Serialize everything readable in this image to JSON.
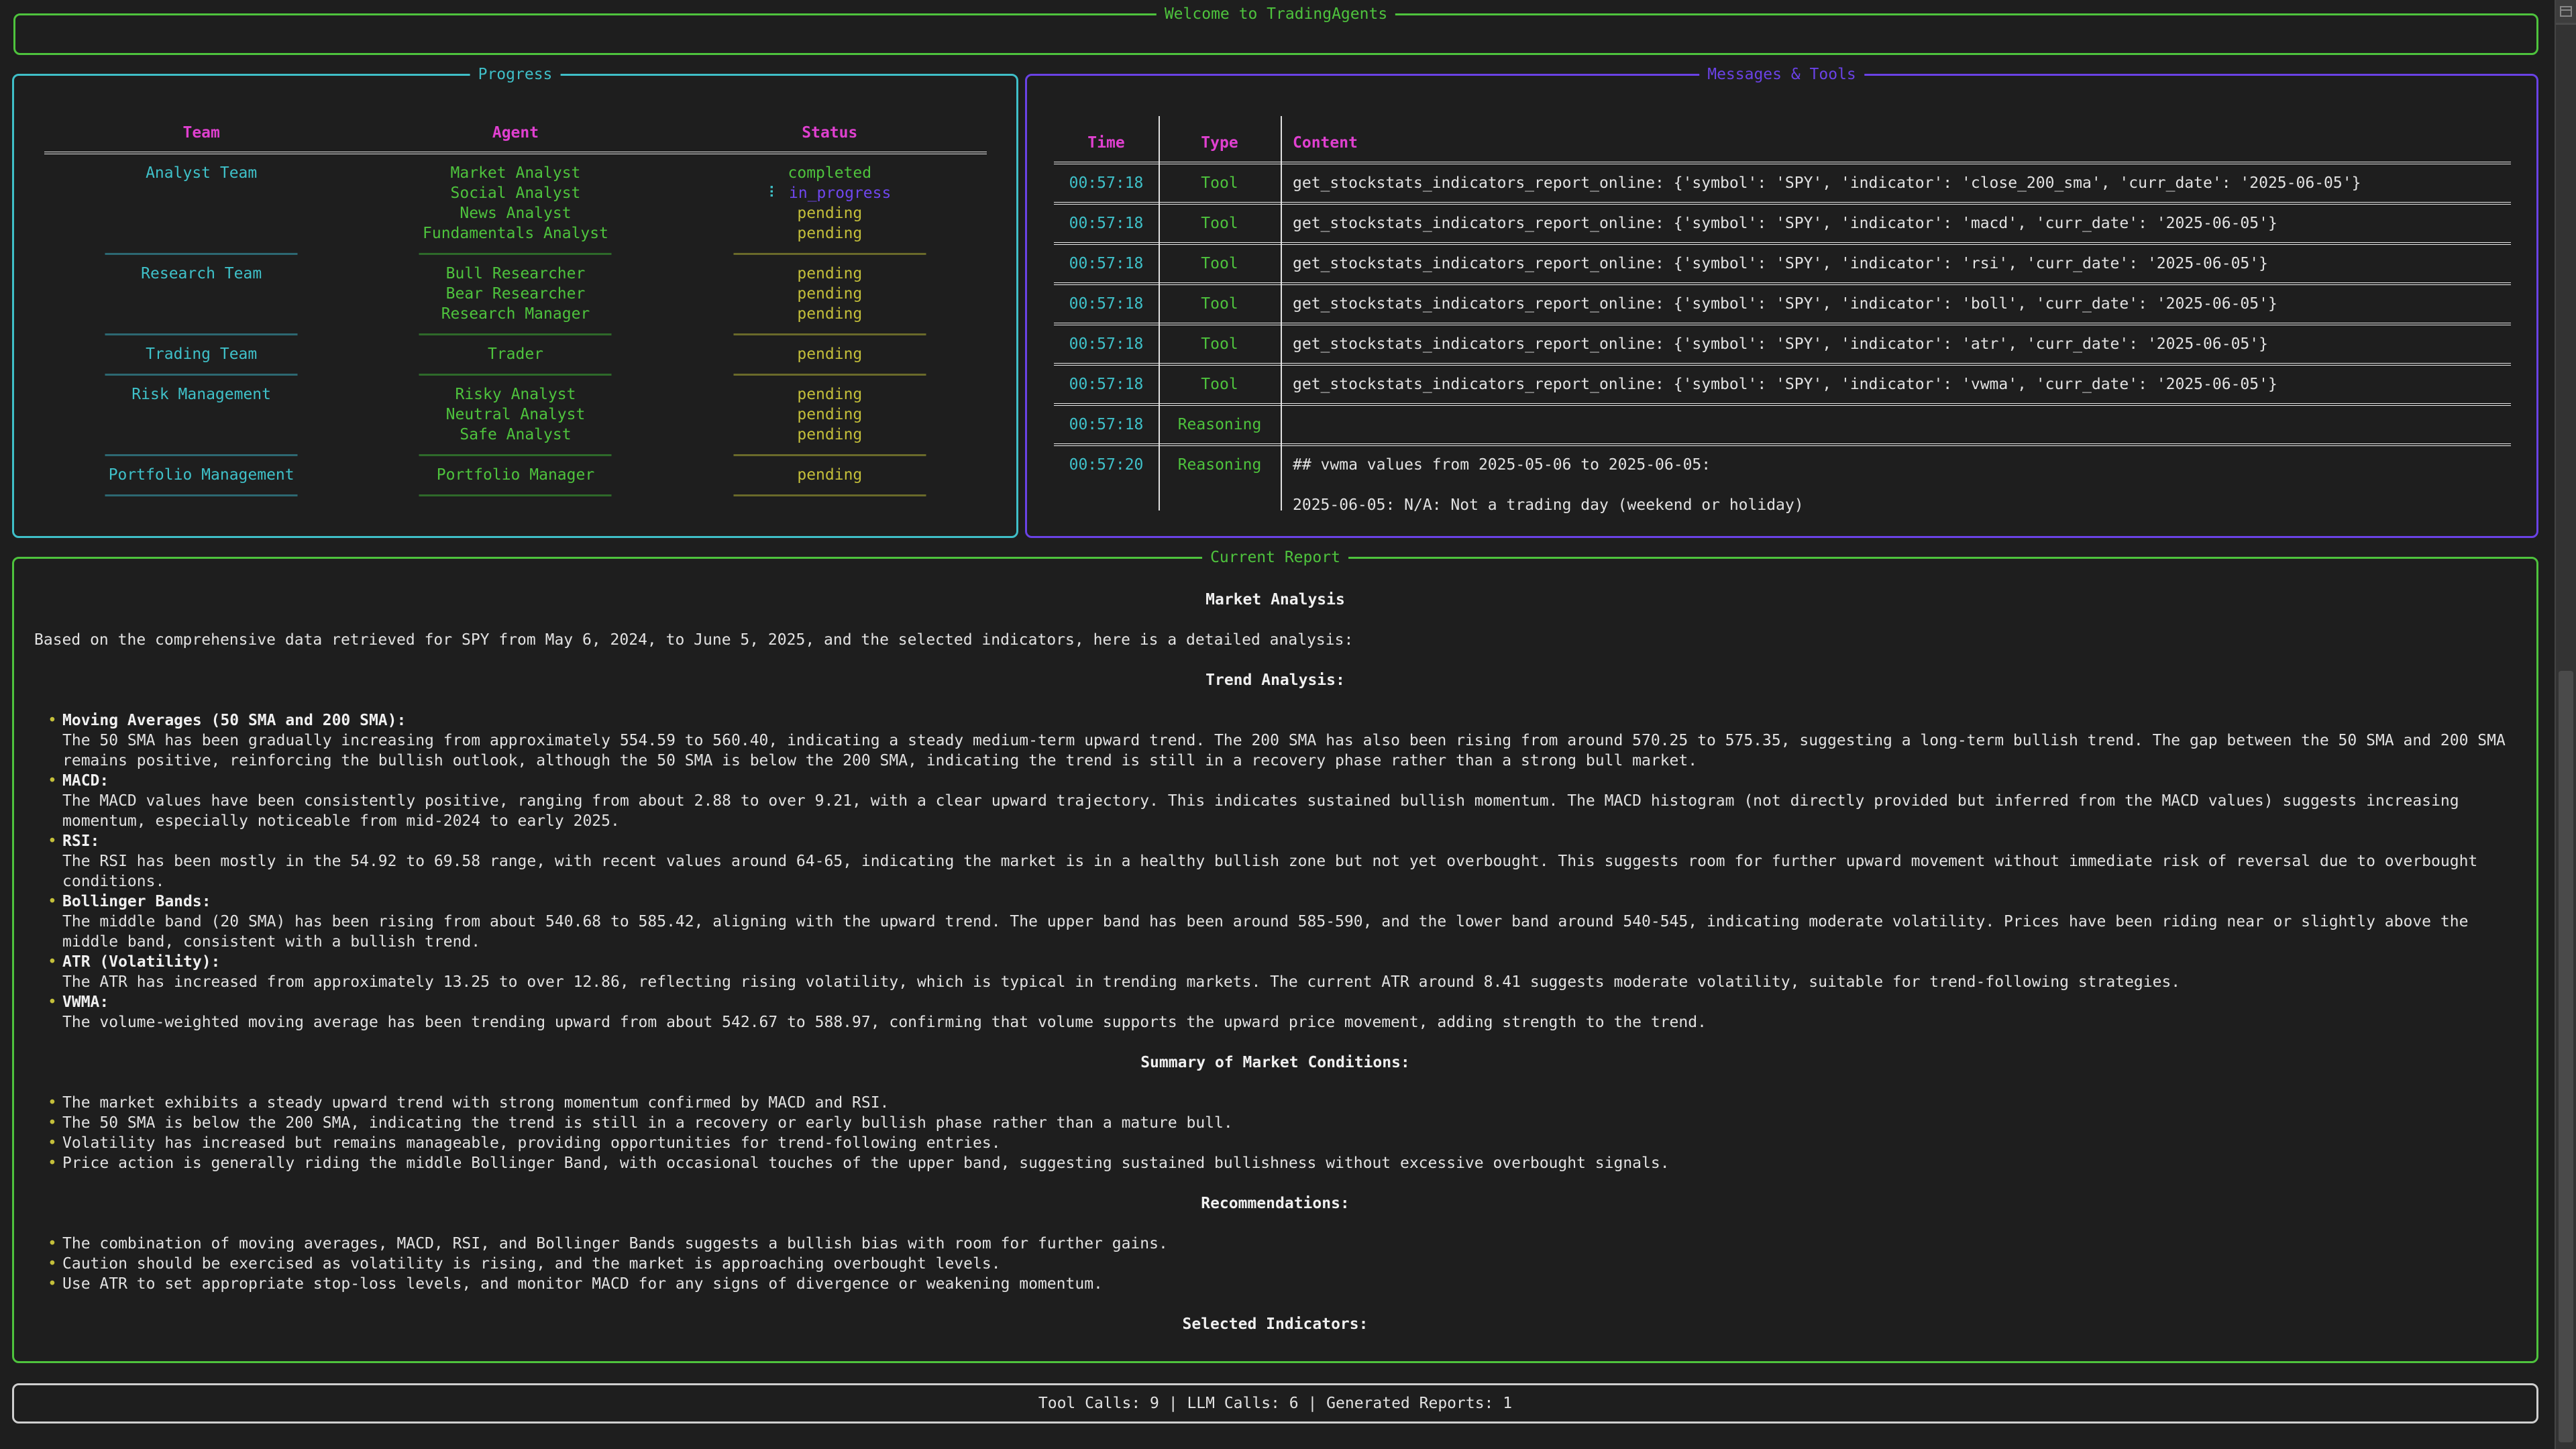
{
  "welcome": {
    "title": "Welcome to TradingAgents"
  },
  "progress": {
    "title": "Progress",
    "headers": [
      "Team",
      "Agent",
      "Status"
    ],
    "groups": [
      {
        "team": "Analyst Team",
        "agents": [
          {
            "name": "Market Analyst",
            "status": "completed"
          },
          {
            "name": "Social Analyst",
            "status": "in_progress",
            "spinner": "⠇"
          },
          {
            "name": "News Analyst",
            "status": "pending"
          },
          {
            "name": "Fundamentals Analyst",
            "status": "pending"
          }
        ]
      },
      {
        "team": "Research Team",
        "agents": [
          {
            "name": "Bull Researcher",
            "status": "pending"
          },
          {
            "name": "Bear Researcher",
            "status": "pending"
          },
          {
            "name": "Research Manager",
            "status": "pending"
          }
        ]
      },
      {
        "team": "Trading Team",
        "agents": [
          {
            "name": "Trader",
            "status": "pending"
          }
        ]
      },
      {
        "team": "Risk Management",
        "agents": [
          {
            "name": "Risky Analyst",
            "status": "pending"
          },
          {
            "name": "Neutral Analyst",
            "status": "pending"
          },
          {
            "name": "Safe Analyst",
            "status": "pending"
          }
        ]
      },
      {
        "team": "Portfolio Management",
        "agents": [
          {
            "name": "Portfolio Manager",
            "status": "pending"
          }
        ]
      }
    ],
    "status_colors": {
      "completed": "#4ec33d",
      "in_progress": "#6f47ee",
      "pending": "#c4bf3a"
    }
  },
  "messages": {
    "title": "Messages & Tools",
    "headers": [
      "Time",
      "Type",
      "Content"
    ],
    "rows": [
      {
        "time": "00:57:18",
        "type": "Tool",
        "content": "get_stockstats_indicators_report_online: {'symbol': 'SPY', 'indicator': 'close_200_sma', 'curr_date': '2025-06-05'}"
      },
      {
        "time": "00:57:18",
        "type": "Tool",
        "content": "get_stockstats_indicators_report_online: {'symbol': 'SPY', 'indicator': 'macd', 'curr_date': '2025-06-05'}"
      },
      {
        "time": "00:57:18",
        "type": "Tool",
        "content": "get_stockstats_indicators_report_online: {'symbol': 'SPY', 'indicator': 'rsi', 'curr_date': '2025-06-05'}"
      },
      {
        "time": "00:57:18",
        "type": "Tool",
        "content": "get_stockstats_indicators_report_online: {'symbol': 'SPY', 'indicator': 'boll', 'curr_date': '2025-06-05'}"
      },
      {
        "time": "00:57:18",
        "type": "Tool",
        "content": "get_stockstats_indicators_report_online: {'symbol': 'SPY', 'indicator': 'atr', 'curr_date': '2025-06-05'}"
      },
      {
        "time": "00:57:18",
        "type": "Tool",
        "content": "get_stockstats_indicators_report_online: {'symbol': 'SPY', 'indicator': 'vwma', 'curr_date': '2025-06-05'}"
      },
      {
        "time": "00:57:18",
        "type": "Reasoning",
        "content": ""
      },
      {
        "time": "00:57:20",
        "type": "Reasoning",
        "content": "## vwma values from 2025-05-06 to 2025-06-05:\n\n2025-06-05: N/A: Not a trading day (weekend or holiday)"
      }
    ]
  },
  "report": {
    "title": "Current Report",
    "blocks": [
      {
        "type": "heading",
        "text": "Market Analysis"
      },
      {
        "type": "para",
        "text": "Based on the comprehensive data retrieved for SPY from May 6, 2024, to June 5, 2025, and the selected indicators, here is a detailed analysis:"
      },
      {
        "type": "heading",
        "text": "Trend Analysis:"
      },
      {
        "type": "bullets",
        "items": [
          {
            "label": "Moving Averages (50 SMA and 200 SMA):",
            "text": "The 50 SMA has been gradually increasing from approximately 554.59 to 560.40, indicating a steady medium-term upward trend. The 200 SMA has also been rising from around 570.25 to 575.35, suggesting a long-term bullish trend. The gap between the 50 SMA and 200 SMA remains positive, reinforcing the bullish outlook, although the 50 SMA is below the 200 SMA, indicating the trend is still in a recovery phase rather than a strong bull market."
          },
          {
            "label": "MACD:",
            "text": "The MACD values have been consistently positive, ranging from about 2.88 to over 9.21, with a clear upward trajectory. This indicates sustained bullish momentum. The MACD histogram (not directly provided but inferred from the MACD values) suggests increasing momentum, especially noticeable from mid-2024 to early 2025."
          },
          {
            "label": "RSI:",
            "text": "The RSI has been mostly in the 54.92 to 69.58 range, with recent values around 64-65, indicating the market is in a healthy bullish zone but not yet overbought. This suggests room for further upward movement without immediate risk of reversal due to overbought conditions."
          },
          {
            "label": "Bollinger Bands:",
            "text": "The middle band (20 SMA) has been rising from about 540.68 to 585.42, aligning with the upward trend. The upper band has been around 585-590, and the lower band around 540-545, indicating moderate volatility. Prices have been riding near or slightly above the middle band, consistent with a bullish trend."
          },
          {
            "label": "ATR (Volatility):",
            "text": "The ATR has increased from approximately 13.25 to over 12.86, reflecting rising volatility, which is typical in trending markets. The current ATR around 8.41 suggests moderate volatility, suitable for trend-following strategies."
          },
          {
            "label": "VWMA:",
            "text": "The volume-weighted moving average has been trending upward from about 542.67 to 588.97, confirming that volume supports the upward price movement, adding strength to the trend."
          }
        ]
      },
      {
        "type": "heading",
        "text": "Summary of Market Conditions:"
      },
      {
        "type": "bullets",
        "items": [
          {
            "text": "The market exhibits a steady upward trend with strong momentum confirmed by MACD and RSI."
          },
          {
            "text": "The 50 SMA is below the 200 SMA, indicating the trend is still in a recovery or early bullish phase rather than a mature bull."
          },
          {
            "text": "Volatility has increased but remains manageable, providing opportunities for trend-following entries."
          },
          {
            "text": "Price action is generally riding the middle Bollinger Band, with occasional touches of the upper band, suggesting sustained bullishness without excessive overbought signals."
          }
        ]
      },
      {
        "type": "heading",
        "text": "Recommendations:"
      },
      {
        "type": "bullets",
        "items": [
          {
            "text": "The combination of moving averages, MACD, RSI, and Bollinger Bands suggests a bullish bias with room for further gains."
          },
          {
            "text": "Caution should be exercised as volatility is rising, and the market is approaching overbought levels."
          },
          {
            "text": "Use ATR to set appropriate stop-loss levels, and monitor MACD for any signs of divergence or weakening momentum."
          }
        ]
      },
      {
        "type": "heading",
        "text": "Selected Indicators:"
      }
    ]
  },
  "footer": {
    "stats": "Tool Calls: 9 | LLM Calls: 6 | Generated Reports: 1"
  },
  "icons": {
    "bullet": "•",
    "scroll_button": "scrollbar-menu-icon"
  }
}
